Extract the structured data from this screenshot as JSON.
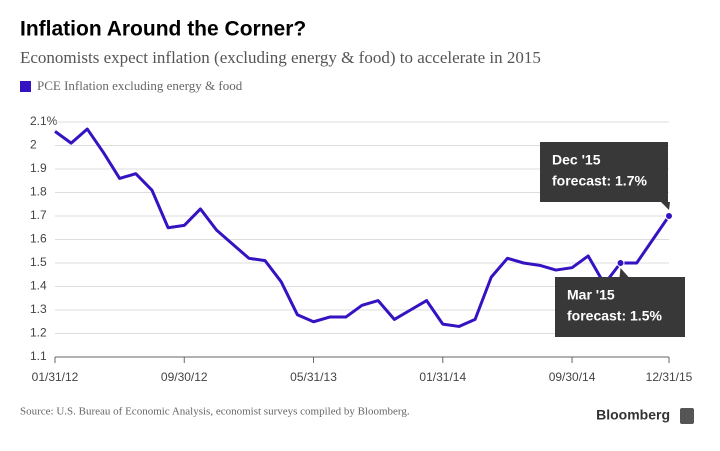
{
  "chart_data": {
    "type": "line",
    "title": "Inflation Around the Corner?",
    "subtitle": "Economists expect inflation (excluding energy & food) to accelerate in 2015",
    "categories": [
      "01/31/12",
      null,
      null,
      null,
      null,
      null,
      null,
      null,
      "09/30/12",
      null,
      null,
      null,
      null,
      null,
      null,
      null,
      "05/31/13",
      null,
      null,
      null,
      null,
      null,
      null,
      null,
      "01/31/14",
      null,
      null,
      null,
      null,
      null,
      null,
      null,
      "09/30/14",
      null,
      null,
      null,
      null,
      null,
      "12/31/15"
    ],
    "series": [
      {
        "name": "PCE Inflation excluding energy & food",
        "color": "#3512c2",
        "values": [
          2.06,
          2.01,
          2.07,
          1.97,
          1.86,
          1.88,
          1.81,
          1.65,
          1.66,
          1.73,
          1.64,
          1.58,
          1.52,
          1.51,
          1.42,
          1.28,
          1.25,
          1.27,
          1.27,
          1.32,
          1.34,
          1.26,
          1.3,
          1.34,
          1.24,
          1.23,
          1.26,
          1.44,
          1.52,
          1.5,
          1.49,
          1.47,
          1.48,
          1.53,
          1.41,
          1.5,
          1.5,
          1.6,
          1.7
        ]
      }
    ],
    "ylim": [
      1.1,
      2.1
    ],
    "yticks": [
      1.1,
      1.2,
      1.3,
      1.4,
      1.5,
      1.6,
      1.7,
      1.8,
      1.9,
      2.0,
      {
        "value": 2.1,
        "label": "2.1%"
      }
    ],
    "grid": true,
    "annotations": [
      {
        "lines": [
          "Dec '15",
          "forecast: 1.7%"
        ]
      },
      {
        "lines": [
          "Mar '15",
          "forecast: 1.5%"
        ]
      }
    ],
    "source": "Source: U.S. Bureau of Economic Analysis, economist surveys compiled by Bloomberg.",
    "brand": "Bloomberg"
  }
}
